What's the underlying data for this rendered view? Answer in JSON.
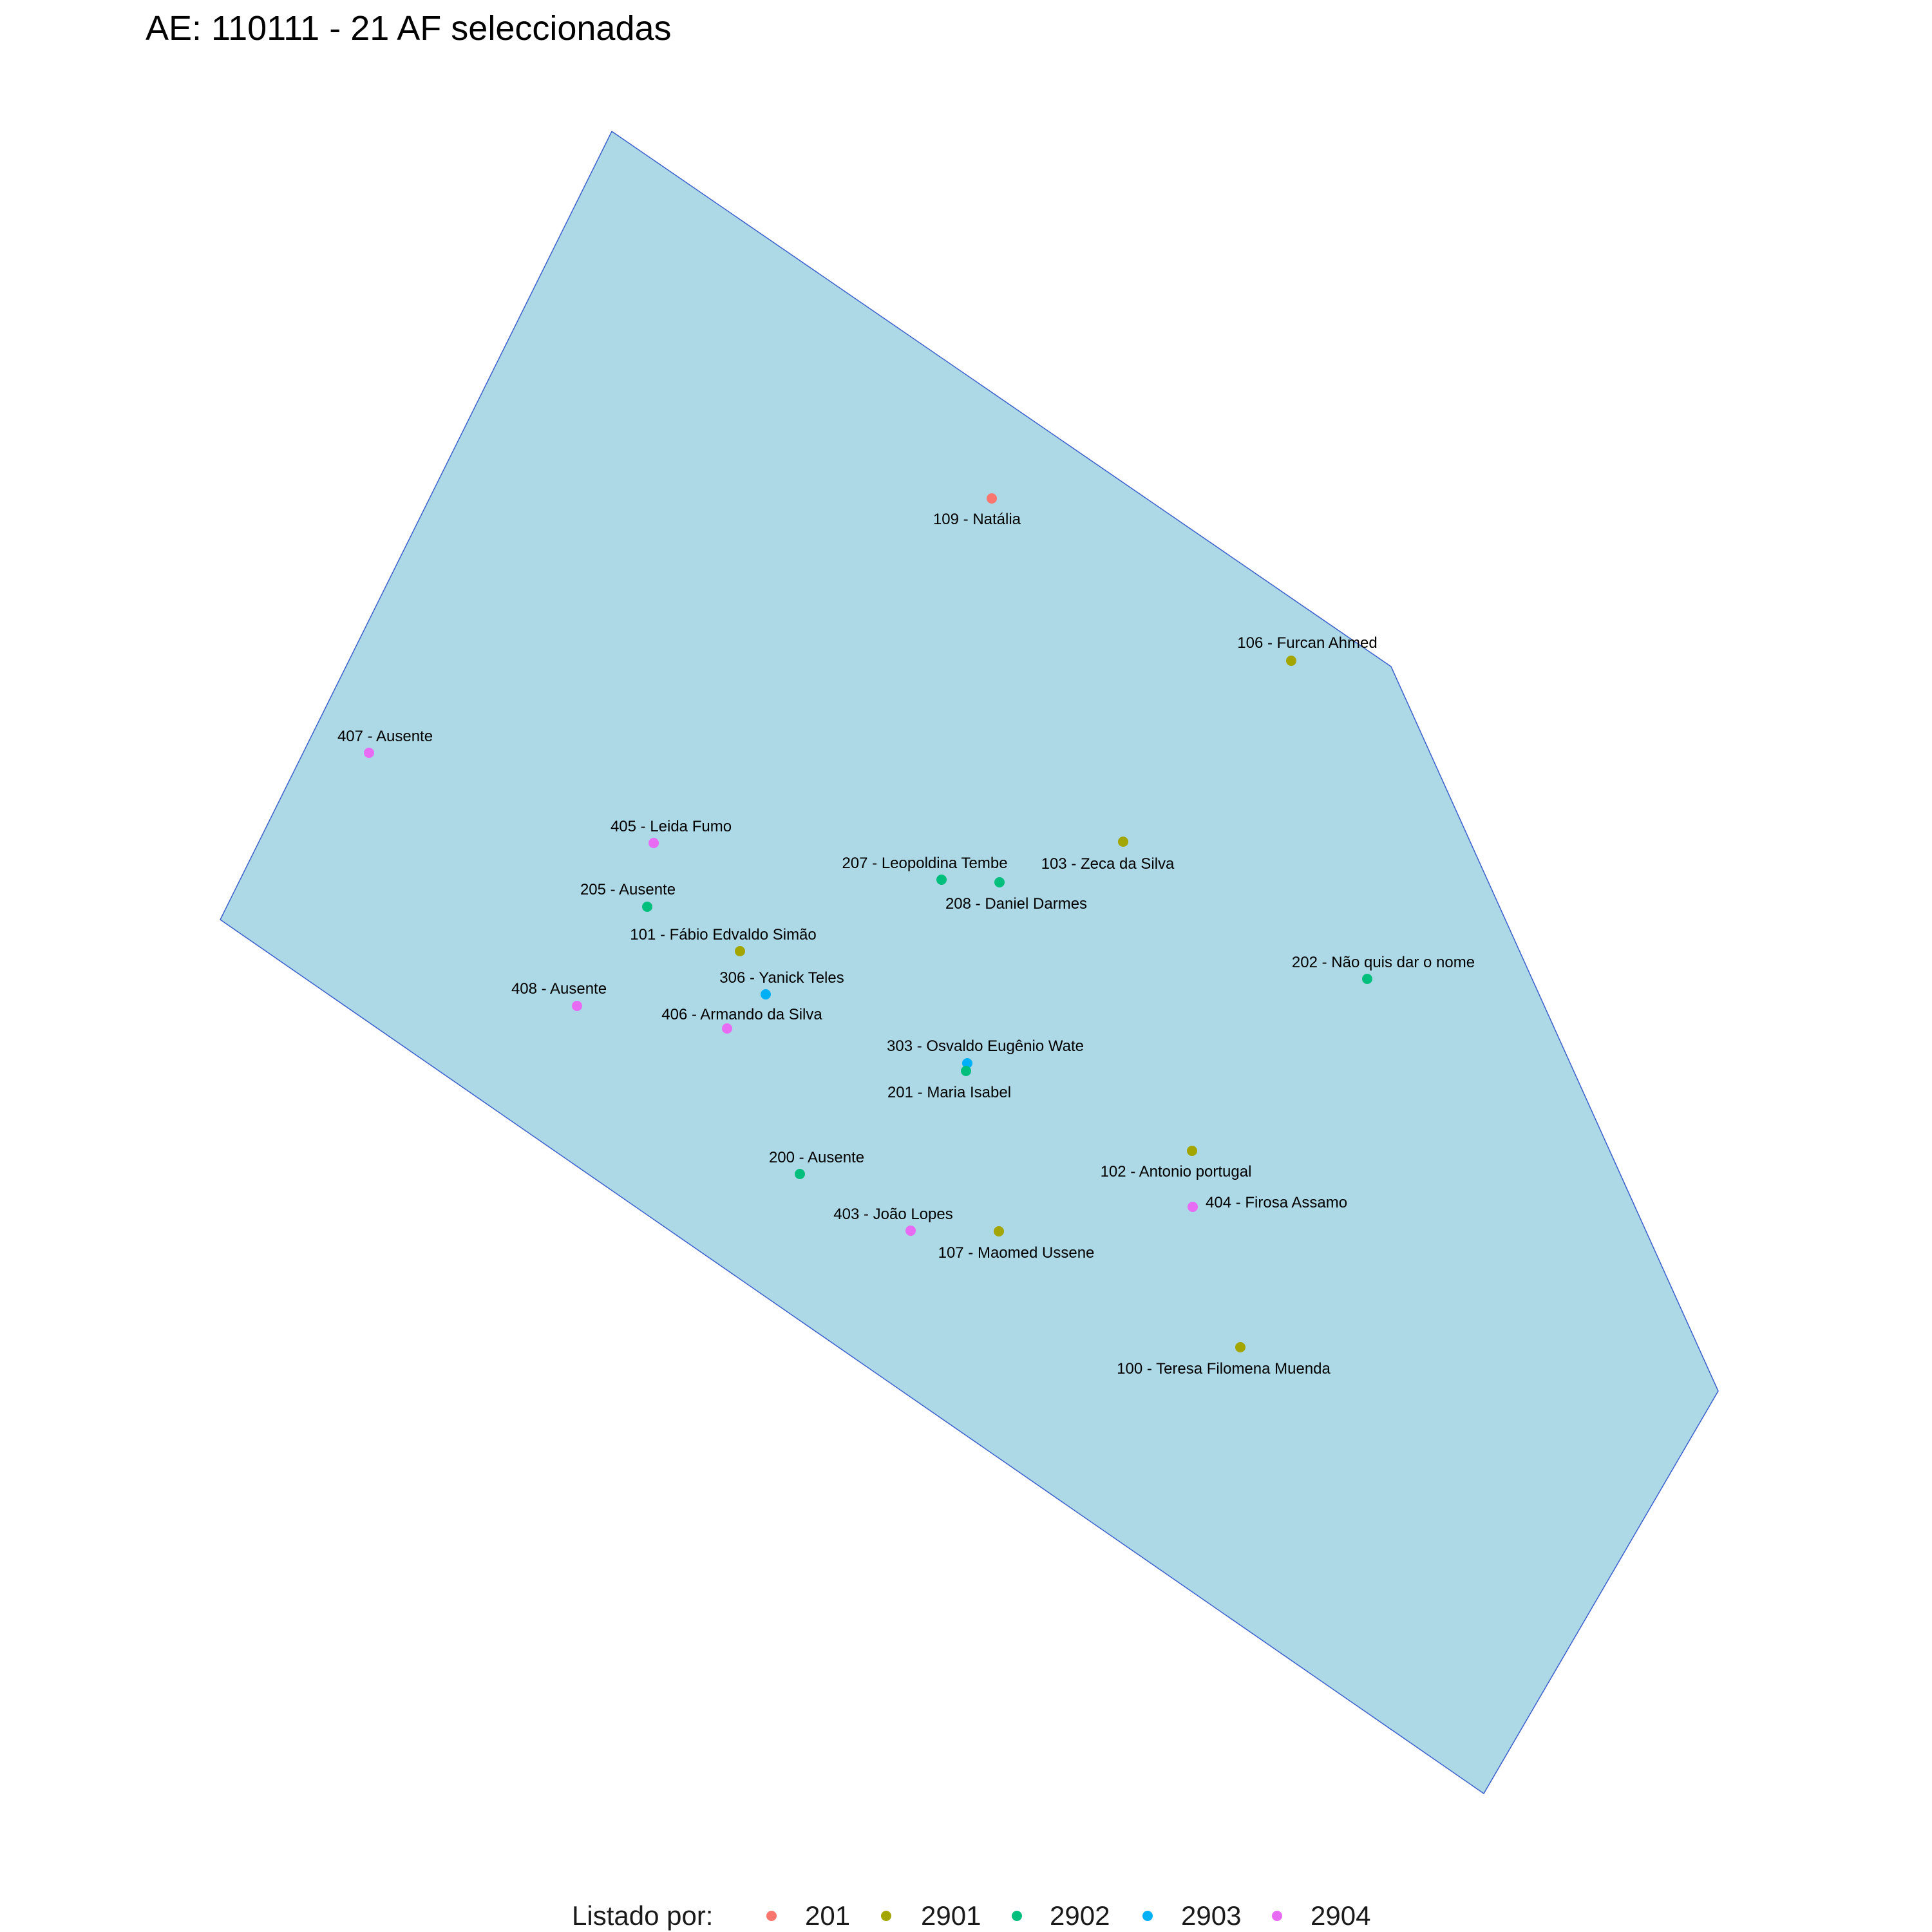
{
  "title": "AE: 110111 - 21  AF seleccionadas",
  "map": {
    "area_fill": "#add8e6",
    "area_stroke": "#3a5fcd"
  },
  "legend": {
    "title": "Listado por:",
    "items": [
      {
        "label": "201",
        "color": "#f8766d"
      },
      {
        "label": "2901",
        "color": "#a3a500"
      },
      {
        "label": "2902",
        "color": "#00bf7d"
      },
      {
        "label": "2903",
        "color": "#00b0f6"
      },
      {
        "label": "2904",
        "color": "#e76bf3"
      }
    ]
  },
  "points": [
    {
      "label": "109 - Natália",
      "group": "201"
    },
    {
      "label": "106 - Furcan Ahmed",
      "group": "2901"
    },
    {
      "label": "407 - Ausente",
      "group": "2904"
    },
    {
      "label": "405 - Leida Fumo",
      "group": "2904"
    },
    {
      "label": "103 - Zeca da Silva",
      "group": "2901"
    },
    {
      "label": "207 - Leopoldina Tembe",
      "group": "2902"
    },
    {
      "label": "208 - Daniel Darmes",
      "group": "2902"
    },
    {
      "label": "205 - Ausente",
      "group": "2902"
    },
    {
      "label": "101 - Fábio Edvaldo Simão",
      "group": "2901"
    },
    {
      "label": "202 - Não  quis dar o nome",
      "group": "2902"
    },
    {
      "label": "306 - Yanick Teles",
      "group": "2903"
    },
    {
      "label": "408 - Ausente",
      "group": "2904"
    },
    {
      "label": "406 - Armando da Silva",
      "group": "2904"
    },
    {
      "label": "303 - Osvaldo Eugênio Wate",
      "group": "2903"
    },
    {
      "label": "201 - Maria Isabel",
      "group": "2902"
    },
    {
      "label": "102 - Antonio portugal",
      "group": "2901"
    },
    {
      "label": "200 - Ausente",
      "group": "2902"
    },
    {
      "label": "404 - Firosa Assamo",
      "group": "2904"
    },
    {
      "label": "403 - João Lopes",
      "group": "2904"
    },
    {
      "label": "107 - Maomed Ussene",
      "group": "2901"
    },
    {
      "label": "100 - Teresa Filomena Muenda",
      "group": "2901"
    }
  ]
}
